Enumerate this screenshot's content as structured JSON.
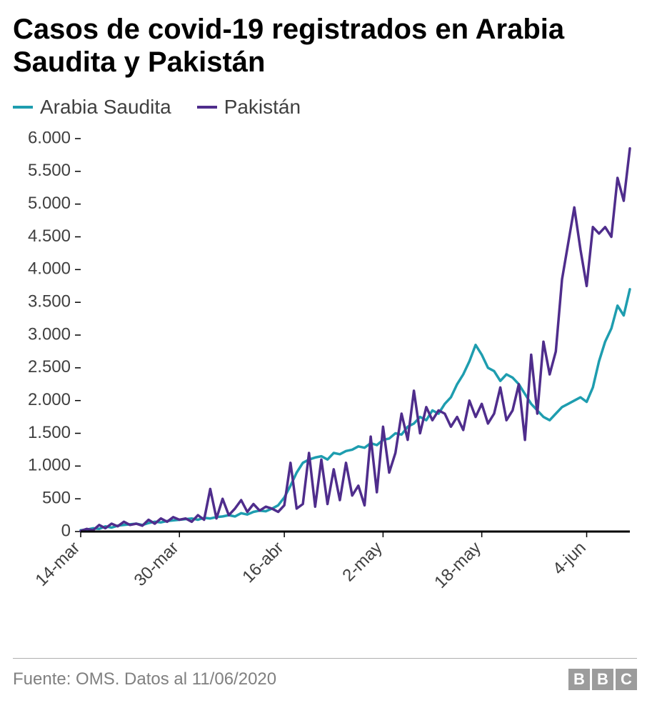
{
  "title": "Casos de covid-19 registrados en Arabia Saudita y Pakistán",
  "legend": {
    "series1": {
      "label": "Arabia Saudita",
      "color": "#1e9daf"
    },
    "series2": {
      "label": "Pakistán",
      "color": "#4f2d8c"
    }
  },
  "chart": {
    "type": "line",
    "background_color": "#ffffff",
    "axis_color": "#000000",
    "tick_label_color": "#404040",
    "tick_fontsize": 24,
    "line_width": 3.5,
    "ylim": [
      0,
      6000
    ],
    "yticks": [
      0,
      500,
      1000,
      1500,
      2000,
      2500,
      3000,
      3500,
      4000,
      4500,
      5000,
      5500,
      6000
    ],
    "ytick_labels": [
      "0",
      "500",
      "1.000",
      "1.500",
      "2.000",
      "2.500",
      "3.000",
      "3.500",
      "4.000",
      "4.500",
      "5.000",
      "5.500",
      "6.000"
    ],
    "ytick_length": 8,
    "xticks_idx": [
      0,
      16,
      33,
      49,
      65,
      82
    ],
    "xtick_labels": [
      "14-mar",
      "30-mar",
      "16-abr",
      "2-may",
      "18-may",
      "4-jun"
    ],
    "xtick_rotation": -45,
    "n_points": 90,
    "series": {
      "arabia": {
        "color": "#1e9daf",
        "values": [
          20,
          30,
          50,
          40,
          80,
          60,
          90,
          100,
          110,
          120,
          100,
          130,
          150,
          140,
          160,
          170,
          180,
          190,
          200,
          180,
          210,
          200,
          220,
          230,
          250,
          230,
          280,
          260,
          300,
          320,
          310,
          350,
          400,
          520,
          700,
          900,
          1050,
          1100,
          1130,
          1150,
          1100,
          1200,
          1180,
          1230,
          1250,
          1300,
          1280,
          1350,
          1320,
          1400,
          1420,
          1500,
          1480,
          1600,
          1650,
          1750,
          1700,
          1850,
          1800,
          1950,
          2050,
          2250,
          2400,
          2600,
          2850,
          2700,
          2500,
          2450,
          2300,
          2400,
          2350,
          2250,
          2100,
          1950,
          1850,
          1750,
          1700,
          1800,
          1900,
          1950,
          2000,
          2050,
          1980,
          2200,
          2600,
          2900,
          3100,
          3450,
          3300,
          3700
        ]
      },
      "pakistan": {
        "color": "#4f2d8c",
        "values": [
          10,
          40,
          20,
          100,
          50,
          120,
          80,
          150,
          100,
          120,
          90,
          180,
          120,
          200,
          150,
          220,
          180,
          200,
          150,
          250,
          180,
          650,
          200,
          500,
          250,
          350,
          480,
          300,
          420,
          320,
          380,
          350,
          300,
          400,
          1050,
          350,
          420,
          1200,
          380,
          1100,
          420,
          950,
          480,
          1050,
          550,
          700,
          400,
          1450,
          600,
          1600,
          900,
          1200,
          1800,
          1400,
          2150,
          1500,
          1900,
          1700,
          1850,
          1800,
          1600,
          1750,
          1550,
          2000,
          1750,
          1950,
          1650,
          1800,
          2200,
          1700,
          1850,
          2250,
          1400,
          2700,
          1800,
          2900,
          2400,
          2750,
          3850,
          4400,
          4950,
          4300,
          3750,
          4650,
          4550,
          4650,
          4500,
          5400,
          5050,
          5850
        ]
      }
    }
  },
  "footer": {
    "source_text": "Fuente: OMS. Datos al 11/06/2020",
    "logo_letters": [
      "B",
      "B",
      "C"
    ]
  }
}
